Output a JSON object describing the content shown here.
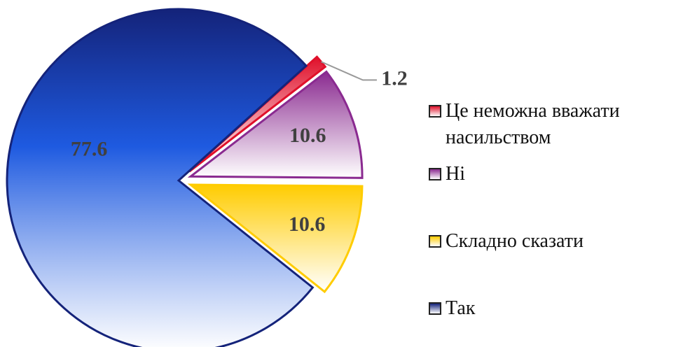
{
  "chart_data": {
    "type": "pie",
    "categories": [
      "Це неможна вважати насильством",
      "Ні",
      "Складно сказати",
      "Так"
    ],
    "values": [
      1.2,
      10.6,
      10.6,
      77.6
    ],
    "colors": [
      "#e0102a",
      "#8a2a90",
      "#ffcc00",
      "#14237a"
    ],
    "legend": "right"
  }
}
